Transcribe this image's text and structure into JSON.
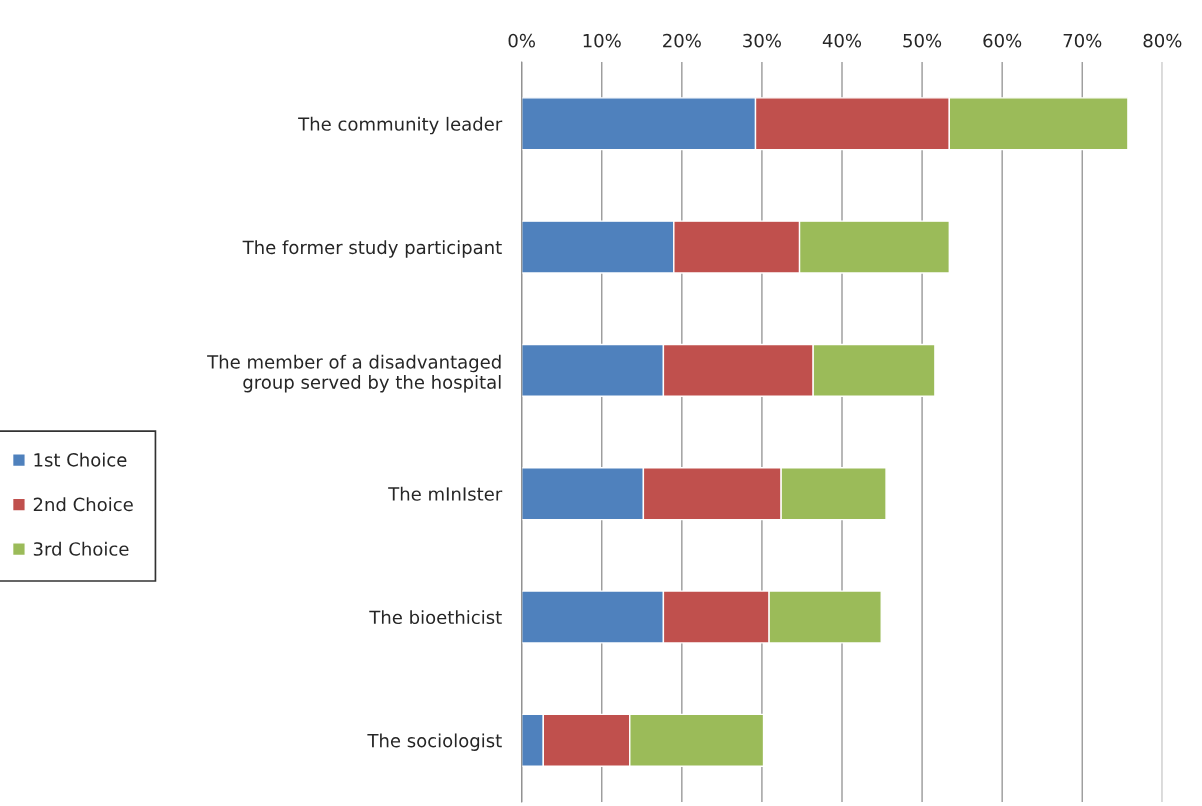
{
  "chart_data": {
    "type": "bar",
    "orientation": "horizontal",
    "stacked": true,
    "categories": [
      "The community leader",
      "The former study participant",
      "The member of a disadvantaged\ngroup served by the hospital",
      "The mInIster",
      "The bioethicist",
      "The sociologist"
    ],
    "series": [
      {
        "name": "1st Choice",
        "color": "#4f81bd",
        "values": [
          29.2,
          19.0,
          17.7,
          15.2,
          17.7,
          2.7
        ]
      },
      {
        "name": "2nd Choice",
        "color": "#c0504d",
        "values": [
          24.2,
          15.7,
          18.7,
          17.2,
          13.2,
          10.8
        ]
      },
      {
        "name": "3rd Choice",
        "color": "#9bbb59",
        "values": [
          22.3,
          18.7,
          15.2,
          13.1,
          14.0,
          16.7
        ]
      }
    ],
    "xlim": [
      0,
      80
    ],
    "xticks": [
      {
        "value": 0,
        "label": "0%"
      },
      {
        "value": 10,
        "label": "10%"
      },
      {
        "value": 20,
        "label": "20%"
      },
      {
        "value": 30,
        "label": "30%"
      },
      {
        "value": 40,
        "label": "40%"
      },
      {
        "value": 50,
        "label": "50%"
      },
      {
        "value": 60,
        "label": "60%"
      },
      {
        "value": 70,
        "label": "70%"
      },
      {
        "value": 80,
        "label": "80%"
      }
    ],
    "grid": "x",
    "legend": "bottom left"
  }
}
